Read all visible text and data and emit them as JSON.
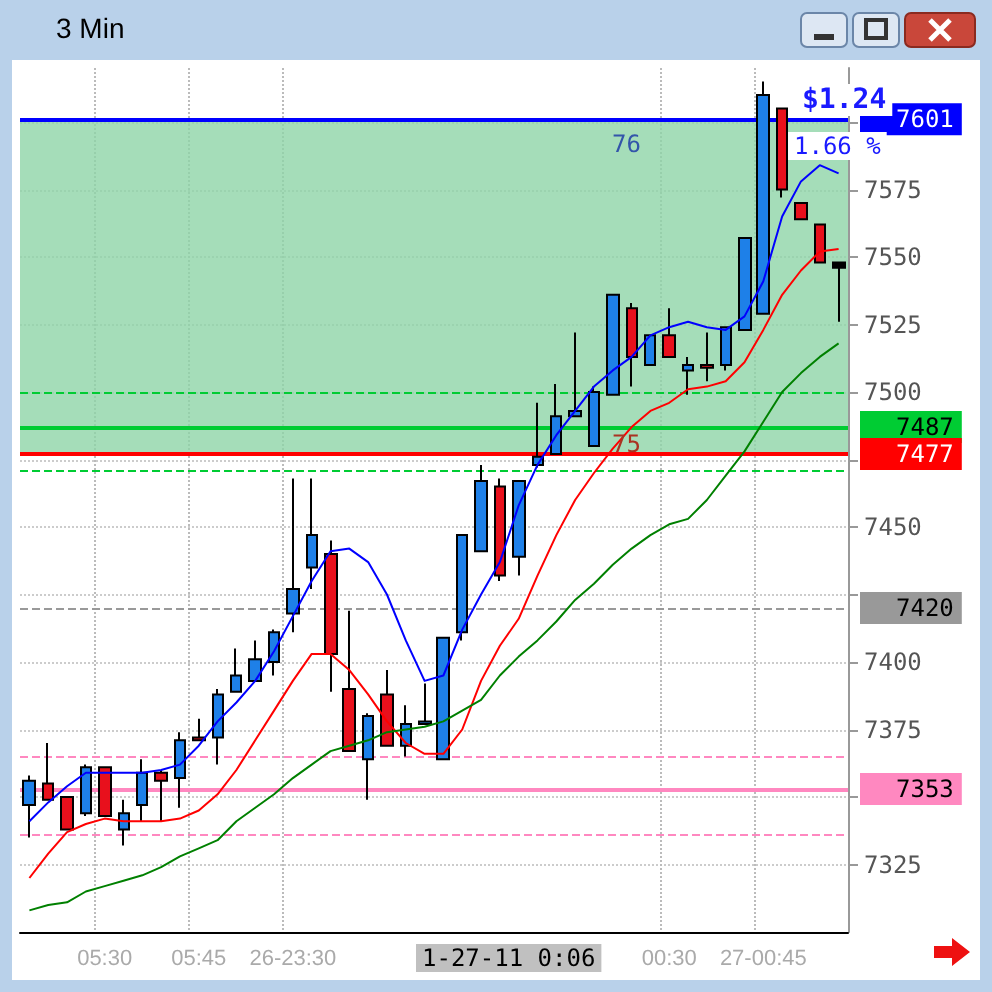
{
  "chart_data": {
    "type": "candlestick",
    "title": "3 Min",
    "categories": [
      null,
      null,
      null,
      null,
      "05:30",
      null,
      null,
      null,
      null,
      "05:45",
      null,
      null,
      null,
      null,
      "26-23:30",
      null,
      null,
      null,
      null,
      null,
      null,
      null,
      null,
      null,
      null,
      null,
      null,
      null,
      null,
      null,
      null,
      null,
      null,
      null,
      "00:30",
      null,
      null,
      null,
      null,
      "27-00:45",
      null,
      null,
      null,
      null
    ],
    "ohlc": [
      [
        7347,
        7358,
        7335,
        7356
      ],
      [
        7355,
        7370,
        7349,
        7349
      ],
      [
        7350,
        7350,
        7338,
        7338
      ],
      [
        7344,
        7362,
        7343,
        7361
      ],
      [
        7361,
        7361,
        7343,
        7343
      ],
      [
        7338,
        7349,
        7332,
        7344
      ],
      [
        7347,
        7364,
        7341,
        7359
      ],
      [
        7359,
        7360,
        7341,
        7356
      ],
      [
        7357,
        7374,
        7346,
        7371
      ],
      [
        7372,
        7379,
        7371,
        7371
      ],
      [
        7372,
        7390,
        7362,
        7388
      ],
      [
        7389,
        7405,
        7389,
        7395
      ],
      [
        7393,
        7408,
        7393,
        7401
      ],
      [
        7400,
        7412,
        7395,
        7411
      ],
      [
        7418,
        7468,
        7411,
        7427
      ],
      [
        7435,
        7468,
        7427,
        7447
      ],
      [
        7440,
        7445,
        7389,
        7403
      ],
      [
        7390,
        7419,
        7367,
        7367
      ],
      [
        7364,
        7381,
        7349,
        7380
      ],
      [
        7388,
        7397,
        7369,
        7369
      ],
      [
        7369,
        7384,
        7365,
        7377
      ],
      [
        7377,
        7392,
        7377,
        7378
      ],
      [
        7364,
        7409,
        7364,
        7409
      ],
      [
        7411,
        7447,
        7408,
        7447
      ],
      [
        7441,
        7473,
        7441,
        7467
      ],
      [
        7465,
        7468,
        7430,
        7432
      ],
      [
        7439,
        7467,
        7432,
        7467
      ],
      [
        7473,
        7496,
        7472,
        7476
      ],
      [
        7477,
        7503,
        7477,
        7491
      ],
      [
        7491,
        7522,
        7491,
        7493
      ],
      [
        7480,
        7502,
        7480,
        7500
      ],
      [
        7499,
        7536,
        7499,
        7536
      ],
      [
        7531,
        7533,
        7502,
        7513
      ],
      [
        7510,
        7521,
        7510,
        7521
      ],
      [
        7521,
        7531,
        7513,
        7513
      ],
      [
        7508,
        7513,
        7499,
        7510
      ],
      [
        7510,
        7522,
        7504,
        7509
      ],
      [
        7510,
        7524,
        7508,
        7524
      ],
      [
        7523,
        7557,
        7523,
        7557
      ],
      [
        7529,
        7615,
        7529,
        7610
      ],
      [
        7605,
        7605,
        7572,
        7575
      ],
      [
        7570,
        7570,
        7564,
        7564
      ],
      [
        7562,
        7562,
        7548,
        7548
      ],
      [
        7548,
        7548,
        7526,
        7546
      ]
    ],
    "colors": [
      "#1e80e8",
      "#e8101c",
      "#e8101c",
      "#1e80e8",
      "#e8101c",
      "#1e80e8",
      "#1e80e8",
      "#e8101c",
      "#1e80e8",
      "#e8101c",
      "#1e80e8",
      "#1e80e8",
      "#1e80e8",
      "#1e80e8",
      "#1e80e8",
      "#1e80e8",
      "#e8101c",
      "#e8101c",
      "#1e80e8",
      "#e8101c",
      "#1e80e8",
      "#1e80e8",
      "#1e80e8",
      "#1e80e8",
      "#1e80e8",
      "#e8101c",
      "#1e80e8",
      "#1e80e8",
      "#1e80e8",
      "#1e80e8",
      "#1e80e8",
      "#1e80e8",
      "#e8101c",
      "#1e80e8",
      "#e8101c",
      "#1e80e8",
      "#e8101c",
      "#1e80e8",
      "#1e80e8",
      "#1e80e8",
      "#e8101c",
      "#e8101c",
      "#e8101c",
      "#000000"
    ],
    "series": [
      {
        "type": "line",
        "color": "#0000ff",
        "values": [
          7341,
          7348,
          7354,
          7359,
          7359,
          7359,
          7359,
          7360,
          7362,
          7369,
          7378,
          7385,
          7393,
          7404,
          7417,
          7430,
          7441,
          7442,
          7437,
          7425,
          7408,
          7393,
          7395,
          7412,
          7425,
          7437,
          7458,
          7473,
          7484,
          7493,
          7502,
          7508,
          7513,
          7521,
          7524,
          7526,
          7524,
          7523,
          7528,
          7541,
          7565,
          7578,
          7584,
          7581
        ]
      },
      {
        "type": "line",
        "color": "#ff0000",
        "values": [
          7320,
          7329,
          7337,
          7340,
          7342,
          7341,
          7341,
          7341,
          7342,
          7345,
          7351,
          7360,
          7371,
          7382,
          7393,
          7403,
          7403,
          7397,
          7388,
          7378,
          7370,
          7366,
          7366,
          7375,
          7393,
          7406,
          7416,
          7432,
          7447,
          7460,
          7470,
          7479,
          7487,
          7493,
          7496,
          7501,
          7502,
          7504,
          7511,
          7523,
          7536,
          7545,
          7552,
          7553
        ]
      },
      {
        "type": "line",
        "color": "#008000",
        "values": [
          7308,
          7310,
          7311,
          7315,
          7317,
          7319,
          7321,
          7324,
          7328,
          7331,
          7334,
          7341,
          7346,
          7351,
          7357,
          7362,
          7367,
          7369,
          7371,
          7374,
          7375,
          7376,
          7378,
          7382,
          7386,
          7395,
          7402,
          7408,
          7415,
          7423,
          7429,
          7436,
          7442,
          7447,
          7451,
          7453,
          7460,
          7469,
          7478,
          7489,
          7500,
          7507,
          7513,
          7518
        ]
      }
    ],
    "ylim": [
      7300,
      7620
    ],
    "yticks": [
      7325,
      {
        "value": 7350,
        "label": null
      },
      7375,
      7400,
      {
        "value": 7425,
        "label": null
      },
      7450,
      {
        "value": 7475,
        "label": null
      },
      7500,
      7525,
      7550,
      7575,
      {
        "value": 7600,
        "label": null
      }
    ],
    "ref_lines": [
      {
        "axis": "y",
        "value": 7601,
        "label": "7601",
        "color": "#0000ff",
        "line_style": "solid"
      },
      {
        "axis": "y",
        "value": 7500,
        "color": "#00cc33",
        "line_style": "dashed"
      },
      {
        "axis": "y",
        "value": 7487,
        "label": "7487",
        "color": "#00cc33",
        "line_style": "solid"
      },
      {
        "axis": "y",
        "value": 7477,
        "label": "7477",
        "color": "#ff0000",
        "line_style": "solid"
      },
      {
        "axis": "y",
        "value": 7471,
        "color": "#00cc33",
        "line_style": "dashed"
      },
      {
        "axis": "y",
        "value": 7420,
        "label": "7420",
        "color": "#999999",
        "line_style": "dashed"
      },
      {
        "axis": "y",
        "value": 7365,
        "color": "#ff88c0",
        "line_style": "dashed"
      },
      {
        "axis": "y",
        "value": 7353,
        "label": "7353",
        "color": "#ff88c0",
        "line_style": "solid"
      },
      {
        "axis": "y",
        "value": 7336,
        "color": "#ff88c0",
        "line_style": "dashed"
      }
    ],
    "bands": [
      {
        "axis": "y",
        "from": 7477,
        "to": 7601,
        "color": "#8fd4a8"
      }
    ],
    "annotations": [
      "$1.24",
      "1.66 %",
      "76",
      "75",
      "1-27-11 0:06"
    ],
    "grid": true,
    "marker": "none",
    "line_style": "solid"
  }
}
